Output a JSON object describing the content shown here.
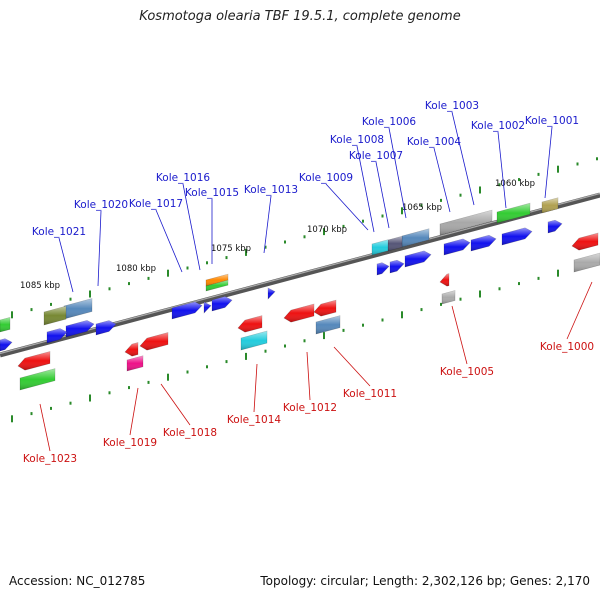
{
  "title": "Kosmotoga olearia TBF 19.5.1, complete genome",
  "footer": {
    "accession": "Accession: NC_012785",
    "summary": "Topology: circular; Length: 2,302,126 bp; Genes: 2,170"
  },
  "scale_labels": [
    "1060 kbp",
    "1065 kbp",
    "1070 kbp",
    "1075 kbp",
    "1080 kbp",
    "1085 kbp"
  ],
  "colors": {
    "forward_label": "#1a1acc",
    "reverse_label": "#cc1111",
    "backbone": "#777777",
    "tick": "#2a8a2a"
  },
  "genes_top": [
    {
      "label": "Kole_1001",
      "color": "#b0a050"
    },
    {
      "label": "Kole_1002",
      "color": "#33cc33"
    },
    {
      "label": "Kole_1003",
      "color": "#a8a8a8"
    },
    {
      "label": "Kole_1004",
      "color": "#a8a8a8"
    },
    {
      "label": "Kole_1006",
      "color": "#5588bb"
    },
    {
      "label": "Kole_1007",
      "color": "#5588bb"
    },
    {
      "label": "Kole_1008",
      "color": "#22ccdd"
    },
    {
      "label": "Kole_1009",
      "color": "#1111ee"
    },
    {
      "label": "Kole_1013",
      "color": "#1111ee"
    },
    {
      "label": "Kole_1015",
      "color": "#33cc33"
    },
    {
      "label": "Kole_1016",
      "color": "#ff8800"
    },
    {
      "label": "Kole_1017",
      "color": "#1111ee"
    },
    {
      "label": "Kole_1020",
      "color": "#5588bb"
    },
    {
      "label": "Kole_1021",
      "color": "#778833"
    }
  ],
  "genes_bottom": [
    {
      "label": "Kole_1000",
      "color": "#ee1111"
    },
    {
      "label": "Kole_1005",
      "color": "#aaaaaa"
    },
    {
      "label": "Kole_1011",
      "color": "#5588bb"
    },
    {
      "label": "Kole_1012",
      "color": "#ee1111"
    },
    {
      "label": "Kole_1014",
      "color": "#22ccdd"
    },
    {
      "label": "Kole_1018",
      "color": "#ee1111"
    },
    {
      "label": "Kole_1019",
      "color": "#ee1188"
    },
    {
      "label": "Kole_1023",
      "color": "#33cc33"
    }
  ]
}
